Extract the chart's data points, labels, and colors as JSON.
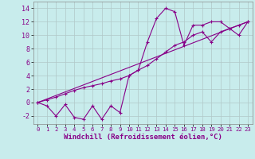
{
  "xlabel": "Windchill (Refroidissement éolien,°C)",
  "background_color": "#c8ecec",
  "line_color": "#880088",
  "xlim": [
    -0.5,
    23.5
  ],
  "ylim": [
    -3.2,
    15
  ],
  "xticks": [
    0,
    1,
    2,
    3,
    4,
    5,
    6,
    7,
    8,
    9,
    10,
    11,
    12,
    13,
    14,
    15,
    16,
    17,
    18,
    19,
    20,
    21,
    22,
    23
  ],
  "yticks": [
    -2,
    0,
    2,
    4,
    6,
    8,
    10,
    12,
    14
  ],
  "series1_x": [
    0,
    1,
    2,
    3,
    4,
    5,
    6,
    7,
    8,
    9,
    10,
    11,
    12,
    13,
    14,
    15,
    16,
    17,
    18,
    19,
    20,
    21,
    22,
    23
  ],
  "series1_y": [
    0,
    -0.5,
    -2,
    -0.3,
    -2.2,
    -2.5,
    -0.5,
    -2.5,
    -0.5,
    -1.5,
    4,
    4.8,
    9,
    12.5,
    14,
    13.5,
    8.5,
    11.5,
    11.5,
    12,
    12,
    11,
    10,
    12
  ],
  "series2_x": [
    0,
    1,
    2,
    3,
    4,
    5,
    6,
    7,
    8,
    9,
    10,
    11,
    12,
    13,
    14,
    15,
    16,
    17,
    18,
    19,
    20,
    21,
    22,
    23
  ],
  "series2_y": [
    0,
    0.4,
    0.8,
    1.3,
    1.8,
    2.2,
    2.5,
    2.8,
    3.2,
    3.5,
    4,
    4.8,
    5.5,
    6.5,
    7.5,
    8.5,
    9.0,
    10,
    10.5,
    9,
    10.5,
    11,
    11.5,
    12
  ],
  "series3_x": [
    0,
    23
  ],
  "series3_y": [
    0,
    12
  ],
  "grid_color": "#b0c8c8",
  "xlabel_fontsize": 6.5,
  "tick_fontsize": 6
}
